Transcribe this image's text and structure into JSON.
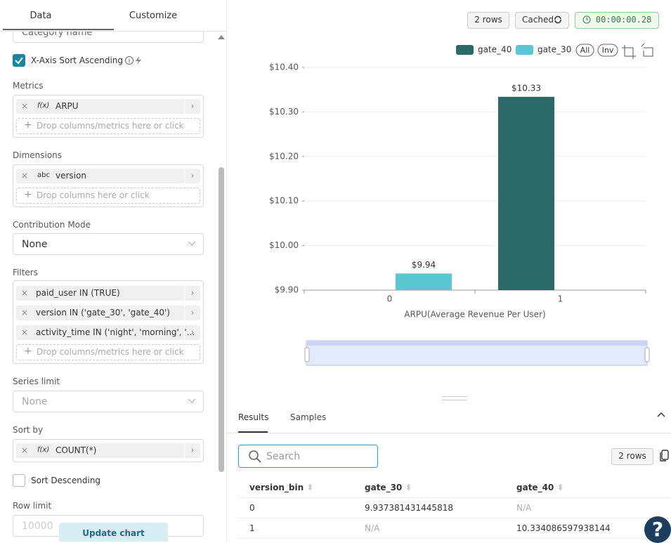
{
  "tabs": [
    "Data",
    "Customize"
  ],
  "left": {
    "partial_select": "Category name",
    "x_axis_sort": "X-Axis Sort Ascending",
    "metrics": {
      "label": "Metrics",
      "items": [
        {
          "icon": "f(x)",
          "text": "ARPU"
        }
      ],
      "drop": "Drop columns/metrics here or click"
    },
    "dimensions": {
      "label": "Dimensions",
      "items": [
        {
          "icon": "abc",
          "text": "version"
        }
      ],
      "drop": "Drop columns here or click"
    },
    "contribution": {
      "label": "Contribution Mode",
      "value": "None"
    },
    "filters": {
      "label": "Filters",
      "items": [
        {
          "text": "paid_user IN (TRUE)"
        },
        {
          "text": "version IN ('gate_30', 'gate_40')"
        },
        {
          "text": "activity_time IN ('night', 'morning', '..."
        }
      ],
      "drop": "Drop columns/metrics here or click"
    },
    "series_limit": {
      "label": "Series limit",
      "value": "None"
    },
    "sort_by": {
      "label": "Sort by",
      "items": [
        {
          "icon": "f(x)",
          "text": "COUNT(*)"
        }
      ]
    },
    "sort_descending": "Sort Descending",
    "row_limit": {
      "label": "Row limit",
      "value": "10000"
    },
    "update": "Update chart"
  },
  "header": {
    "rows": "2 rows",
    "cached": "Cached",
    "timer": "00:00:00.28"
  },
  "chart_data": {
    "type": "bar",
    "xlabel": "ARPU(Average Revenue Per User)",
    "categories": [
      "0",
      "1"
    ],
    "series": [
      {
        "name": "gate_40",
        "color": "#2b6a69",
        "values": [
          null,
          10.334086597938144
        ],
        "value_labels": [
          null,
          "$10.33"
        ]
      },
      {
        "name": "gate_30",
        "color": "#5ac8d0",
        "values": [
          9.937381431445818,
          null
        ],
        "value_labels": [
          "$9.94",
          null
        ]
      }
    ],
    "ylim": [
      9.9,
      10.4
    ],
    "yticks": [
      {
        "value": 9.9,
        "label": "$9.90"
      },
      {
        "value": 10.0,
        "label": "$10.00"
      },
      {
        "value": 10.1,
        "label": "$10.10"
      },
      {
        "value": 10.2,
        "label": "$10.20"
      },
      {
        "value": 10.3,
        "label": "$10.30"
      },
      {
        "value": 10.4,
        "label": "$10.40"
      }
    ],
    "grid": true,
    "legend_buttons": [
      "All",
      "Inv"
    ]
  },
  "results": {
    "tabs": [
      "Results",
      "Samples"
    ],
    "search": "Search",
    "rows": "2 rows",
    "columns": [
      "version_bin",
      "gate_30",
      "gate_40"
    ],
    "data": [
      [
        "0",
        "9.937381431445818",
        "N/A"
      ],
      [
        "1",
        "N/A",
        "10.334086597938144"
      ]
    ]
  },
  "help": "?"
}
